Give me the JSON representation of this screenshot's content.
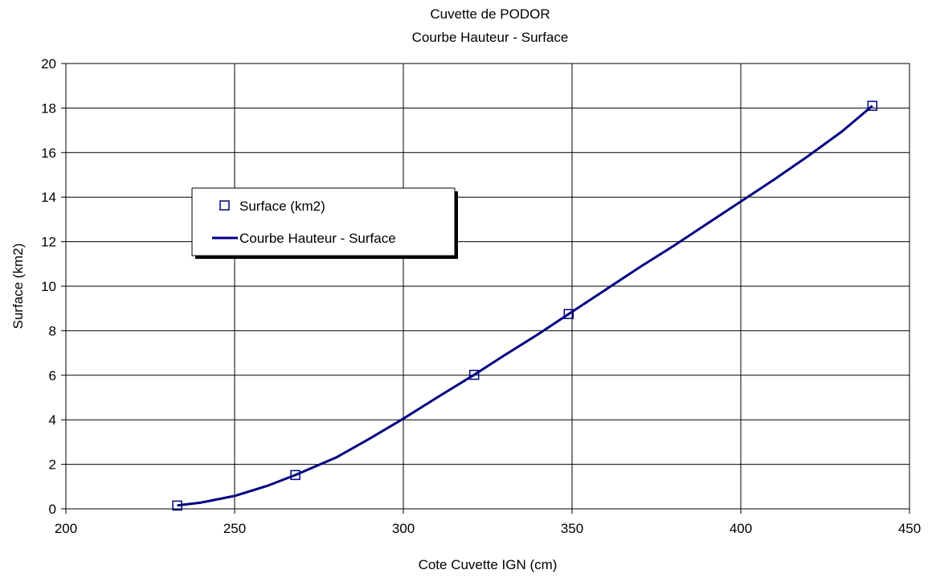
{
  "chart_data": {
    "type": "scatter",
    "title": "Cuvette de PODOR",
    "subtitle": "Courbe Hauteur - Surface",
    "xlabel": "Cote Cuvette IGN (cm)",
    "ylabel": "Surface (km2)",
    "xlim": [
      200,
      450
    ],
    "ylim": [
      0,
      20
    ],
    "xticks": [
      200,
      250,
      300,
      350,
      400,
      450
    ],
    "yticks": [
      0,
      2,
      4,
      6,
      8,
      10,
      12,
      14,
      16,
      18,
      20
    ],
    "grid": true,
    "legend_position": "left-middle",
    "series": [
      {
        "name": "Surface (km2)",
        "kind": "markers",
        "marker": "square-open",
        "color": "#000080",
        "x": [
          233,
          268,
          321,
          349,
          439
        ],
        "y": [
          0.15,
          1.52,
          6.02,
          8.75,
          18.1
        ]
      },
      {
        "name": "Courbe Hauteur - Surface",
        "kind": "line",
        "color": "#000080",
        "x": [
          233,
          240,
          250,
          260,
          268,
          280,
          290,
          300,
          310,
          321,
          330,
          340,
          349,
          360,
          370,
          380,
          390,
          400,
          410,
          420,
          430,
          439
        ],
        "y": [
          0.15,
          0.28,
          0.58,
          1.05,
          1.52,
          2.3,
          3.15,
          4.05,
          5.0,
          6.02,
          6.9,
          7.85,
          8.75,
          9.85,
          10.85,
          11.8,
          12.8,
          13.8,
          14.8,
          15.85,
          16.95,
          18.1
        ]
      }
    ]
  }
}
